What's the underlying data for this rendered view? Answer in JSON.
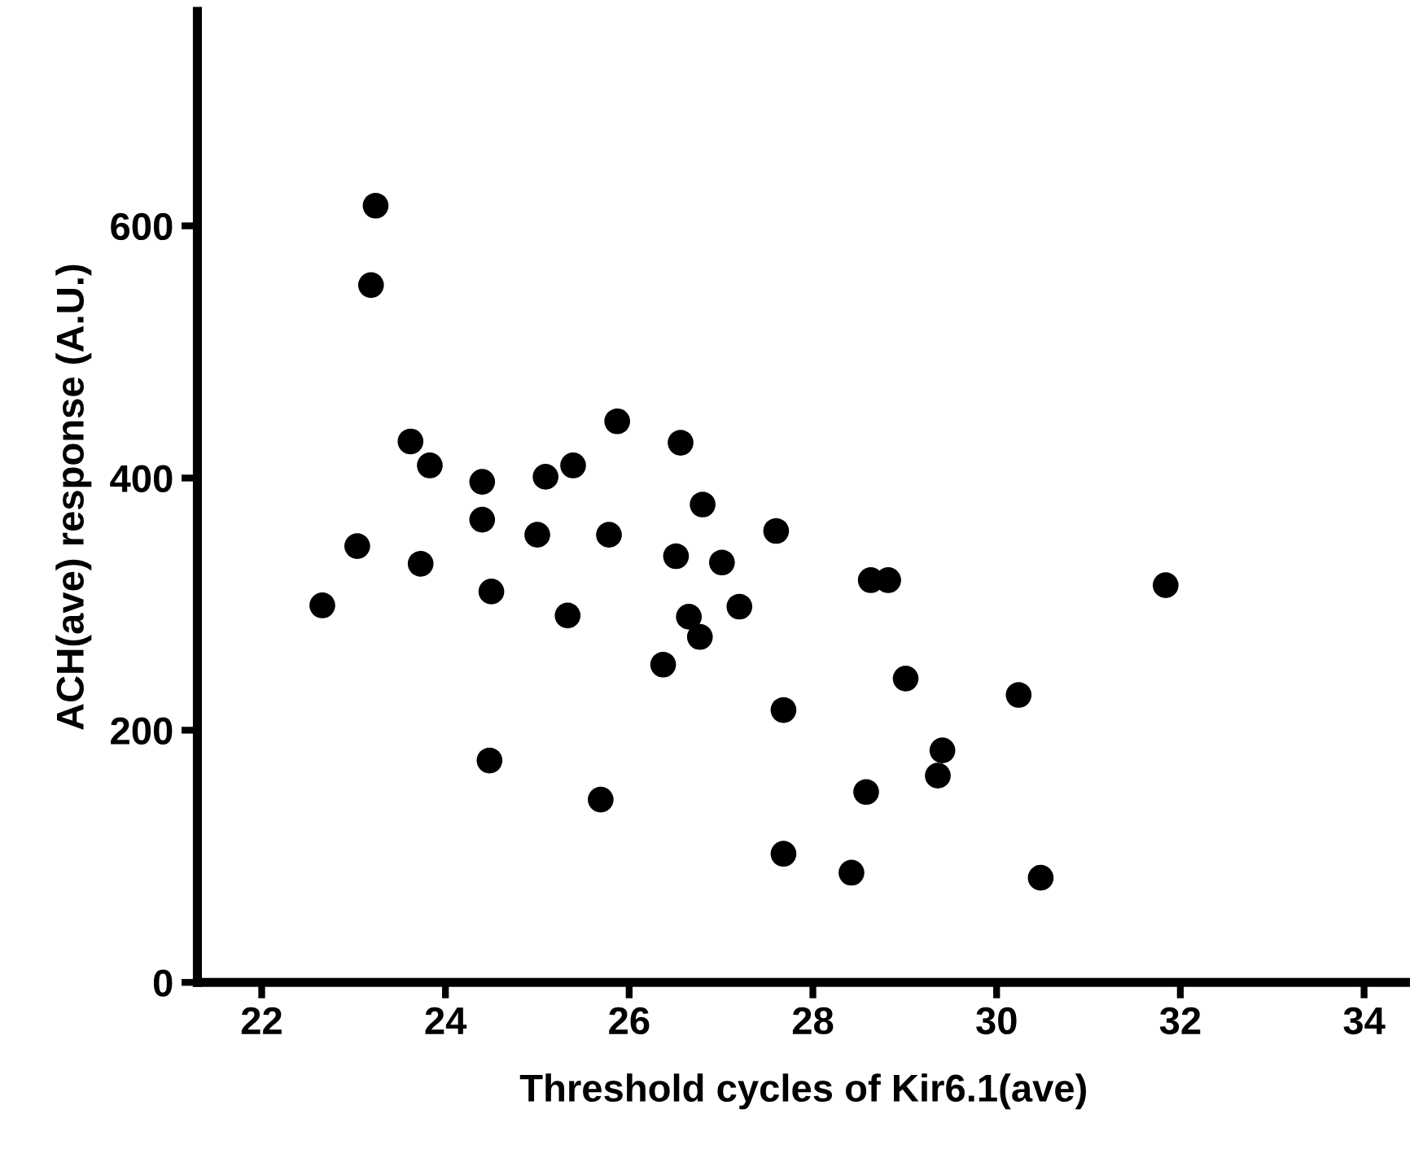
{
  "chart_data": {
    "type": "scatter",
    "xlabel": "Threshold cycles of Kir6.1(ave)",
    "ylabel": "ACH(ave) response (A.U.)",
    "series": [
      {
        "color": "#000000",
        "x": [
          23.24,
          23.19,
          22.66,
          23.04,
          23.62,
          23.83,
          23.73,
          24.4,
          24.4,
          24.5,
          24.48,
          25.0,
          25.09,
          25.39,
          25.33,
          25.87,
          25.78,
          25.69,
          26.56,
          26.8,
          26.51,
          27.01,
          26.65,
          26.77,
          26.37,
          27.2,
          27.6,
          28.63,
          28.82,
          31.84,
          29.01,
          30.24,
          27.68,
          29.41,
          29.36,
          28.58,
          27.68,
          28.42,
          30.48
        ],
        "values": [
          616,
          553,
          299,
          346,
          429,
          410,
          332,
          397,
          367,
          310,
          176,
          355,
          401,
          410,
          291,
          445,
          355,
          145,
          428,
          379,
          338,
          333,
          290,
          274,
          252,
          298,
          358,
          319,
          319,
          315,
          241,
          228,
          216,
          184,
          164,
          151,
          102,
          87,
          83
        ]
      }
    ],
    "marker": "circle",
    "grid": false,
    "xlim": [
      21.3,
      34.5
    ],
    "xticks": [
      22,
      24,
      26,
      28,
      30,
      32,
      34
    ],
    "ylim": [
      0,
      770
    ],
    "yticks": [
      0,
      200,
      400,
      600
    ]
  }
}
